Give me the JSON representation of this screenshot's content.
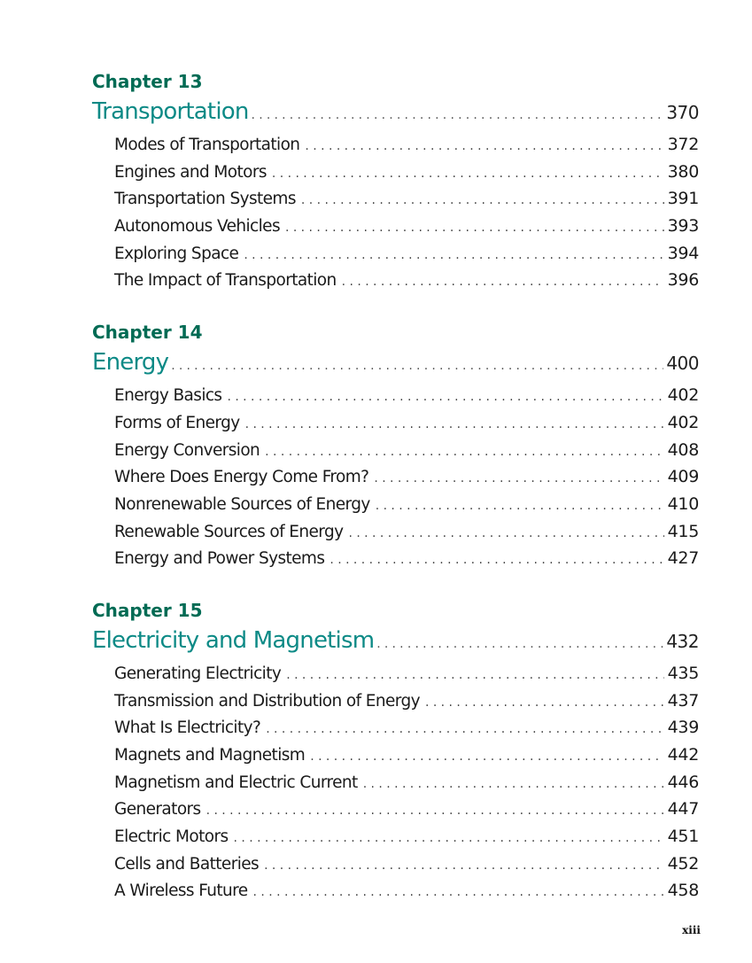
{
  "chapters": [
    {
      "label": "Chapter 13",
      "title": "Transportation",
      "page": "370",
      "entries": [
        {
          "title": "Modes of Transportation",
          "page": "372"
        },
        {
          "title": "Engines and Motors",
          "page": "380"
        },
        {
          "title": "Transportation Systems",
          "page": "391"
        },
        {
          "title": "Autonomous Vehicles",
          "page": "393"
        },
        {
          "title": "Exploring Space",
          "page": "394"
        },
        {
          "title": "The Impact of Transportation",
          "page": "396"
        }
      ]
    },
    {
      "label": "Chapter 14",
      "title": "Energy",
      "page": "400",
      "entries": [
        {
          "title": "Energy Basics",
          "page": "402"
        },
        {
          "title": "Forms of Energy",
          "page": "402"
        },
        {
          "title": "Energy Conversion",
          "page": "408"
        },
        {
          "title": "Where Does Energy Come From?",
          "page": "409"
        },
        {
          "title": "Nonrenewable Sources of Energy",
          "page": "410"
        },
        {
          "title": "Renewable Sources of Energy",
          "page": "415"
        },
        {
          "title": "Energy and Power Systems",
          "page": "427"
        }
      ]
    },
    {
      "label": "Chapter 15",
      "title": "Electricity and Magnetism",
      "page": "432",
      "entries": [
        {
          "title": "Generating Electricity",
          "page": "435"
        },
        {
          "title": "Transmission and Distribution of Energy",
          "page": "437"
        },
        {
          "title": "What Is Electricity?",
          "page": "439"
        },
        {
          "title": "Magnets and Magnetism",
          "page": "442"
        },
        {
          "title": "Magnetism and Electric Current",
          "page": "446"
        },
        {
          "title": "Generators",
          "page": "447"
        },
        {
          "title": "Electric Motors",
          "page": "451"
        },
        {
          "title": "Cells and Batteries",
          "page": "452"
        },
        {
          "title": "A Wireless Future",
          "page": "458"
        }
      ]
    }
  ],
  "folio": "xiii",
  "colors": {
    "chapter_label": "#006b54",
    "chapter_title": "#0c8a86",
    "body_text": "#1a1a1a"
  }
}
